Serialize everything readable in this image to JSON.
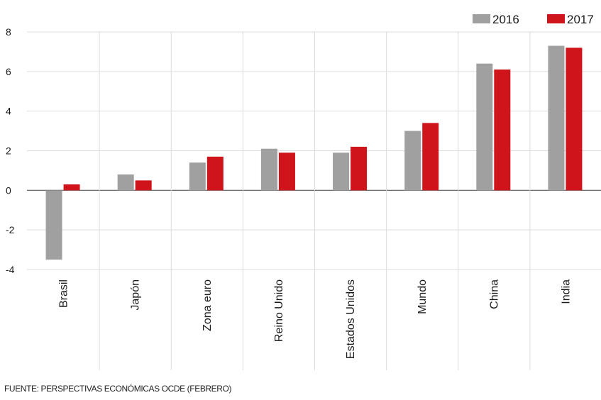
{
  "chart_data": {
    "type": "bar",
    "categories": [
      "Brasil",
      "Japón",
      "Zona euro",
      "Reino Unido",
      "Estados Unidos",
      "Mundo",
      "China",
      "India"
    ],
    "series": [
      {
        "name": "2016",
        "color": "#a0a0a0",
        "values": [
          -3.5,
          0.8,
          1.4,
          2.1,
          1.9,
          3.0,
          6.4,
          7.3
        ]
      },
      {
        "name": "2017",
        "color": "#d0141b",
        "values": [
          0.3,
          0.5,
          1.7,
          1.9,
          2.2,
          3.4,
          6.1,
          7.2
        ]
      }
    ],
    "ylim": [
      -4,
      8
    ],
    "yticks": [
      8,
      6,
      4,
      2,
      0,
      -2,
      -4
    ],
    "ytick_labels": [
      "8",
      "6",
      "4",
      "2",
      "0",
      "-2",
      "-4"
    ],
    "grid": true,
    "legend_position": "top-right",
    "source": "FUENTE: PERSPECTIVAS ECONÓMICAS OCDE (FEBRERO)"
  }
}
